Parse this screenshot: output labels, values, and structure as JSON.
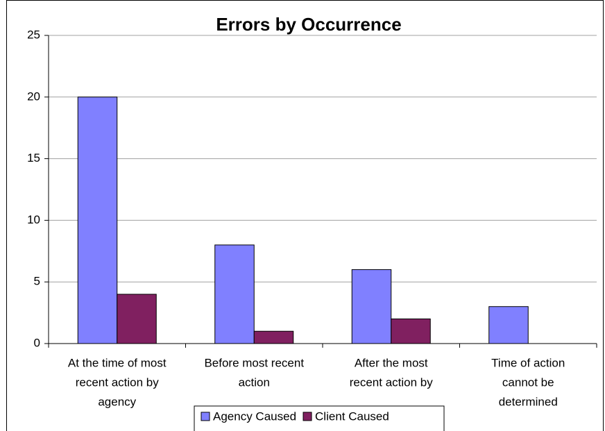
{
  "chart_data": {
    "type": "bar",
    "title": "Errors by Occurrence",
    "categories": [
      [
        "At the time of most",
        "recent action by",
        "agency"
      ],
      [
        "Before most recent",
        "action"
      ],
      [
        "After the most",
        "recent action by"
      ],
      [
        "Time of action",
        "cannot be",
        "determined"
      ]
    ],
    "series": [
      {
        "name": "Agency Caused",
        "color": "#8080ff",
        "values": [
          20,
          8,
          6,
          3
        ]
      },
      {
        "name": "Client Caused",
        "color": "#802060",
        "values": [
          4,
          1,
          2,
          0
        ]
      }
    ],
    "ylim": [
      0,
      25
    ],
    "yticks": [
      0,
      5,
      10,
      15,
      20,
      25
    ],
    "grid": true,
    "legend": "bottom"
  }
}
